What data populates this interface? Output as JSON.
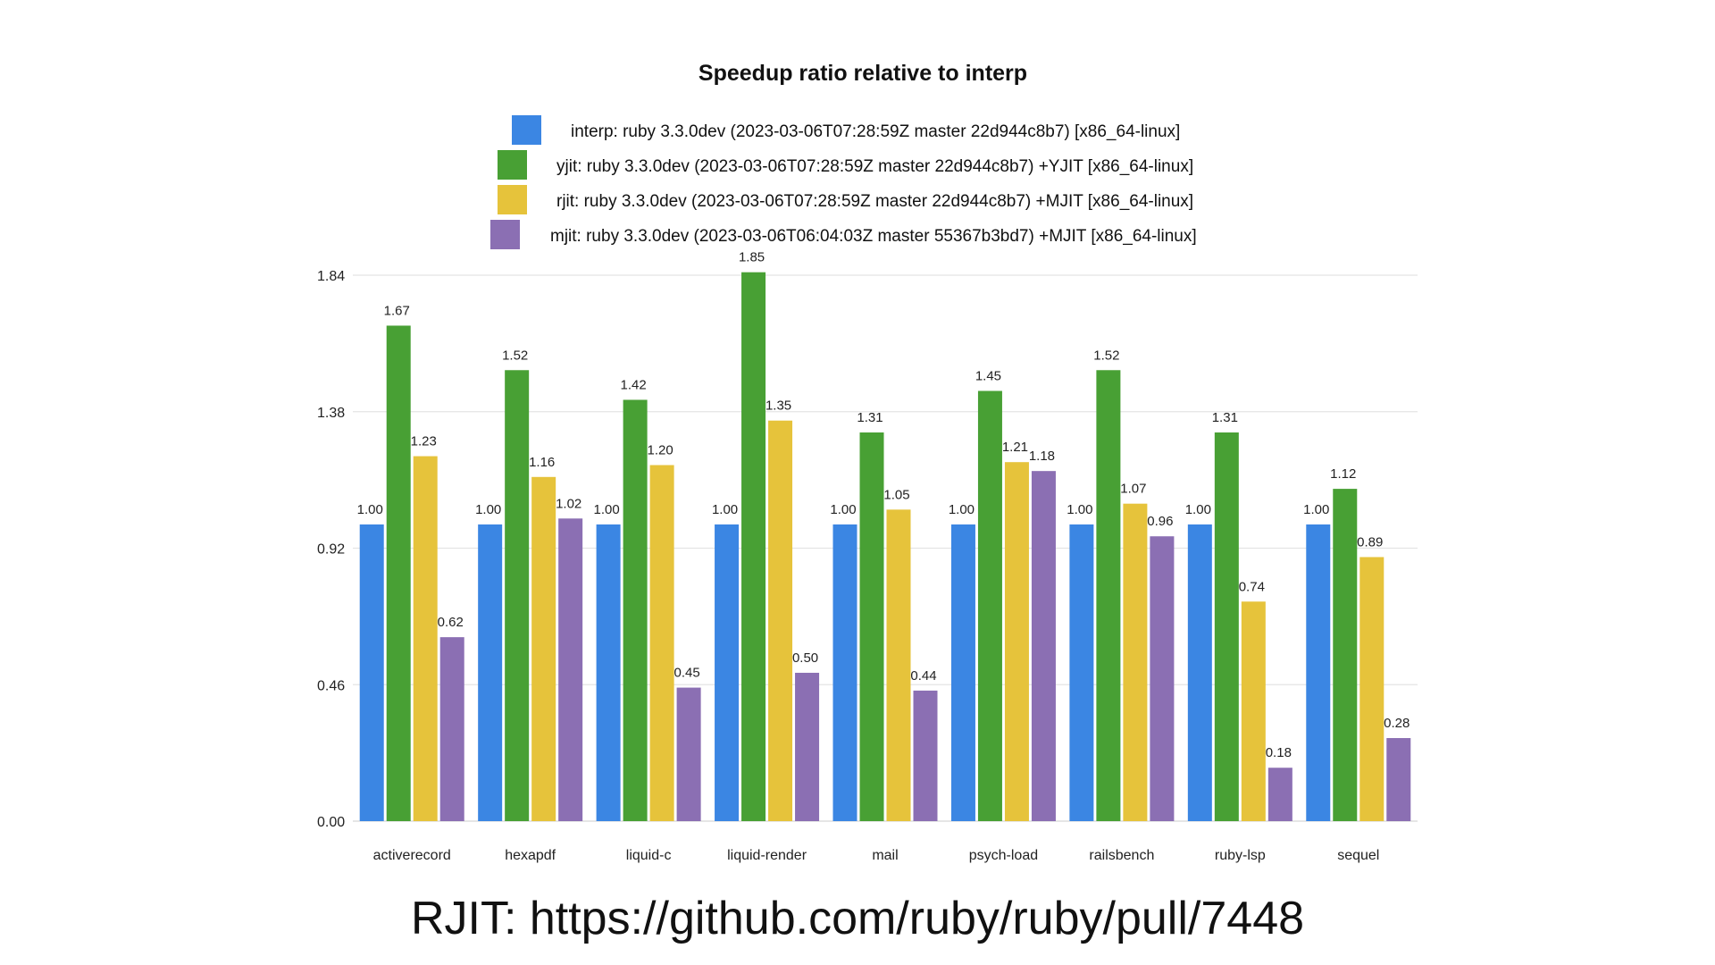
{
  "chart_data": {
    "type": "bar",
    "title": "Speedup ratio relative to interp",
    "categories": [
      "activerecord",
      "hexapdf",
      "liquid-c",
      "liquid-render",
      "mail",
      "psych-load",
      "railsbench",
      "ruby-lsp",
      "sequel"
    ],
    "series": [
      {
        "name": "interp: ruby 3.3.0dev (2023-03-06T07:28:59Z master 22d944c8b7) [x86_64-linux]",
        "color": "#3b86e3",
        "values": [
          1.0,
          1.0,
          1.0,
          1.0,
          1.0,
          1.0,
          1.0,
          1.0,
          1.0
        ],
        "labels": [
          "1.00",
          "1.00",
          "1.00",
          "1.00",
          "1.00",
          "1.00",
          "1.00",
          "1.00",
          "1.00"
        ]
      },
      {
        "name": "yjit: ruby 3.3.0dev (2023-03-06T07:28:59Z master 22d944c8b7) +YJIT [x86_64-linux]",
        "color": "#48a034",
        "values": [
          1.67,
          1.52,
          1.42,
          1.85,
          1.31,
          1.45,
          1.52,
          1.31,
          1.12
        ],
        "labels": [
          "1.67",
          "1.52",
          "1.42",
          "1.85",
          "1.31",
          "1.45",
          "1.52",
          "1.31",
          "1.12"
        ]
      },
      {
        "name": "rjit: ruby 3.3.0dev (2023-03-06T07:28:59Z master 22d944c8b7) +MJIT [x86_64-linux]",
        "color": "#e6c33b",
        "values": [
          1.23,
          1.16,
          1.2,
          1.35,
          1.05,
          1.21,
          1.07,
          0.74,
          0.89
        ],
        "labels": [
          "1.23",
          "1.16",
          "1.20",
          "1.35",
          "1.05",
          "1.21",
          "1.07",
          "0.74",
          "0.89"
        ]
      },
      {
        "name": "mjit: ruby 3.3.0dev (2023-03-06T06:04:03Z master 55367b3bd7) +MJIT [x86_64-linux]",
        "color": "#8b6fb3",
        "values": [
          0.62,
          1.02,
          0.45,
          0.5,
          0.44,
          1.18,
          0.96,
          0.18,
          0.28
        ],
        "labels": [
          "0.62",
          "1.02",
          "0.45",
          "0.50",
          "0.44",
          "1.18",
          "0.96",
          "0.18",
          "0.28"
        ]
      }
    ],
    "yticks": [
      "0.00",
      "0.46",
      "0.92",
      "1.38",
      "1.84"
    ],
    "ylim": [
      0,
      1.84
    ],
    "grid": true,
    "legend": "top-center"
  },
  "caption": "RJIT: https://github.com/ruby/ruby/pull/7448"
}
